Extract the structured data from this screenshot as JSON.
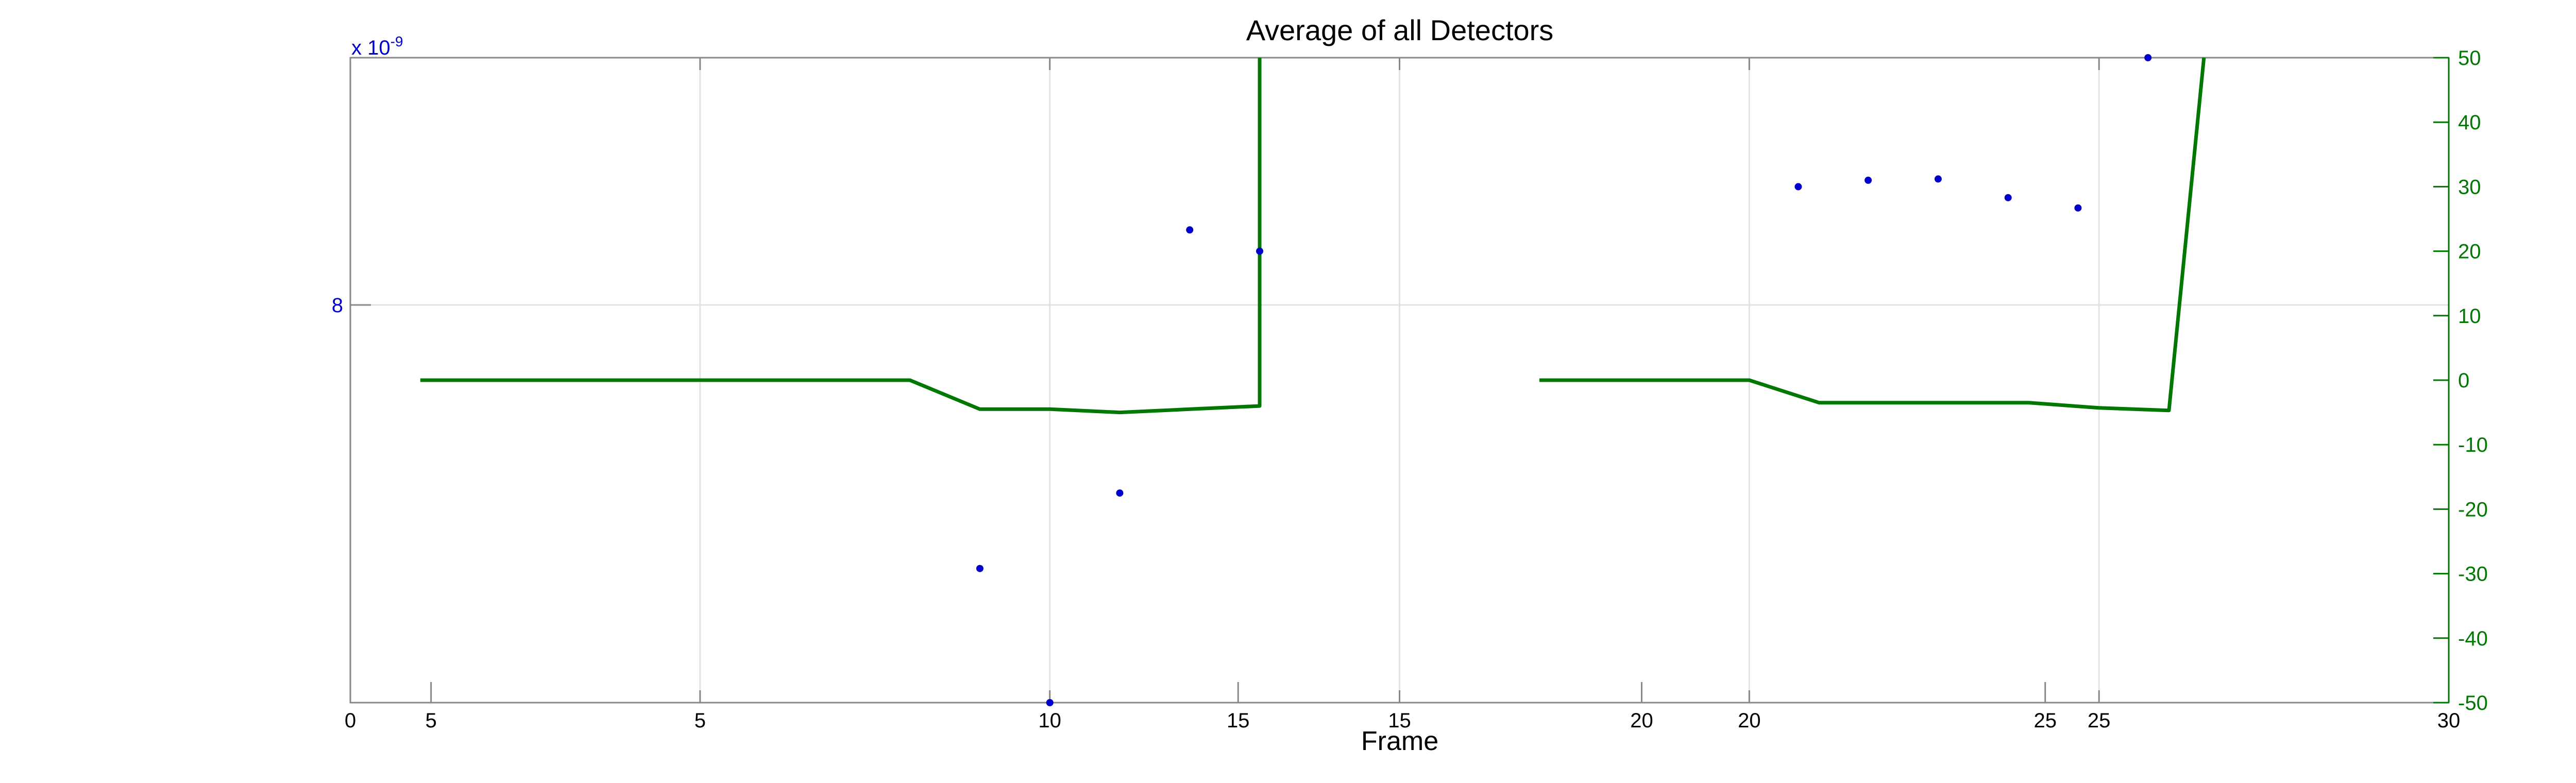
{
  "chart_data": {
    "type": "line",
    "title": "Average of all Detectors",
    "xlabel": "Frame",
    "xlim": [
      0,
      30
    ],
    "x_ticks": [
      "0",
      "5",
      "10",
      "15",
      "20",
      "25",
      "30"
    ],
    "x_ticks_secondary": [
      "5",
      "15",
      "20",
      "25"
    ],
    "left_axis": {
      "color": "#0000cc",
      "exponent_label": "x 10",
      "exponent_power": "-9",
      "ticks": [
        "8"
      ]
    },
    "right_axis": {
      "color": "#007700",
      "ylim": [
        -50,
        50
      ],
      "ticks": [
        "-50",
        "-40",
        "-30",
        "-20",
        "-10",
        "0",
        "10",
        "20",
        "30",
        "40",
        "50"
      ]
    },
    "grid": true,
    "series": [
      {
        "type": "line",
        "color": "#007700",
        "axis": "right",
        "segments": [
          [
            [
              1,
              0
            ],
            [
              8,
              0
            ],
            [
              9,
              -4.5
            ],
            [
              10,
              -4.5
            ],
            [
              11,
              -5
            ],
            [
              12,
              -4.5
            ],
            [
              13,
              -4
            ],
            [
              13,
              50
            ]
          ],
          [
            [
              17,
              0
            ],
            [
              20,
              0
            ],
            [
              21,
              -3.5
            ],
            [
              22,
              -3.5
            ],
            [
              23,
              -3.5
            ],
            [
              24,
              -3.5
            ],
            [
              25,
              -4.3
            ],
            [
              26,
              -4.7
            ],
            [
              26.5,
              50
            ]
          ]
        ]
      },
      {
        "type": "scatter",
        "color": "#0000cc",
        "axis": "left",
        "points": [
          [
            9,
            -29.2
          ],
          [
            10,
            -50
          ],
          [
            11,
            -17.5
          ],
          [
            12,
            23.3
          ],
          [
            13,
            20
          ],
          [
            20.7,
            30
          ],
          [
            21.7,
            31
          ],
          [
            22.7,
            31.2
          ],
          [
            23.7,
            28.3
          ],
          [
            24.7,
            26.7
          ],
          [
            25.7,
            50
          ]
        ]
      }
    ]
  }
}
